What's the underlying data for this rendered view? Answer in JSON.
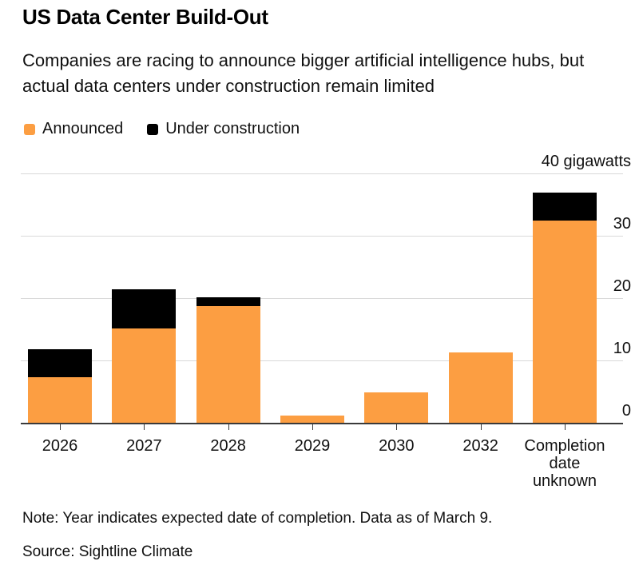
{
  "header": {
    "title": "US Data Center Build-Out",
    "subtitle": "Companies are racing to announce bigger artificial intelligence hubs, but actual data centers under construction remain limited"
  },
  "chart_data": {
    "type": "bar",
    "stacked": true,
    "unit": "gigawatts",
    "title": "US Data Center Build-Out",
    "categories": [
      "2026",
      "2027",
      "2028",
      "2029",
      "2030",
      "2032",
      "Completion date unknown"
    ],
    "series": [
      {
        "name": "Announced",
        "color": "#fc9e42",
        "values": [
          7.3,
          15.1,
          18.7,
          1.2,
          4.9,
          11.3,
          32.4
        ]
      },
      {
        "name": "Under construction",
        "color": "#000000",
        "values": [
          4.5,
          6.3,
          1.4,
          0,
          0,
          0,
          4.5
        ]
      }
    ],
    "ylim": [
      0,
      40
    ],
    "yticks": [
      0,
      10,
      20,
      30,
      40
    ],
    "ytick_labels": [
      "0",
      "10",
      "20",
      "30",
      "40 gigawatts"
    ],
    "grid": true,
    "legend_position": "top-left"
  },
  "footer": {
    "note": "Note: Year indicates expected date of completion. Data as of March 9.",
    "source": "Source: Sightline Climate"
  },
  "colors": {
    "announced": "#fc9e42",
    "under_construction": "#000000",
    "gridline": "#d9d9d9",
    "axis": "#3a3a3a",
    "text": "#111111"
  }
}
